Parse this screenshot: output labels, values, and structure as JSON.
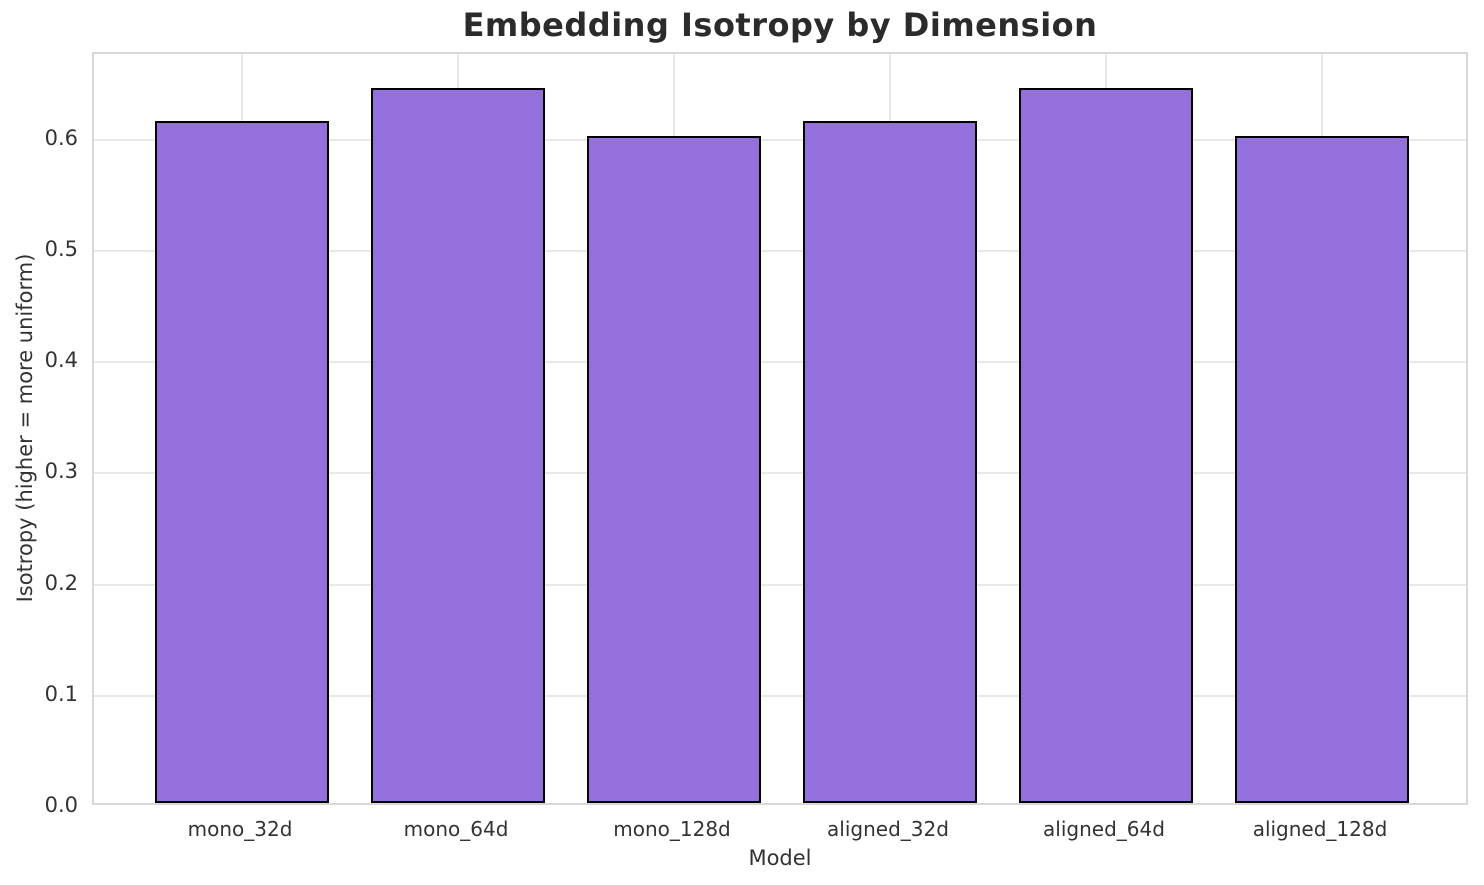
{
  "chart_data": {
    "type": "bar",
    "title": "Embedding Isotropy by Dimension",
    "xlabel": "Model",
    "ylabel": "Isotropy (higher = more uniform)",
    "categories": [
      "mono_32d",
      "mono_64d",
      "mono_128d",
      "aligned_32d",
      "aligned_64d",
      "aligned_128d"
    ],
    "values": [
      0.613,
      0.643,
      0.6,
      0.613,
      0.643,
      0.6
    ],
    "yticks": [
      0.0,
      0.1,
      0.2,
      0.3,
      0.4,
      0.5,
      0.6
    ],
    "ylim": [
      0,
      0.677
    ],
    "grid": true,
    "legend_position": "none",
    "colors": {
      "bar_fill": "#9370db",
      "bar_edge": "#000000",
      "grid": "#e9e9e9",
      "spine": "#d7d7d7",
      "tick_text": "#333333",
      "title_text": "#2b2b2b",
      "background": "#ffffff"
    }
  }
}
